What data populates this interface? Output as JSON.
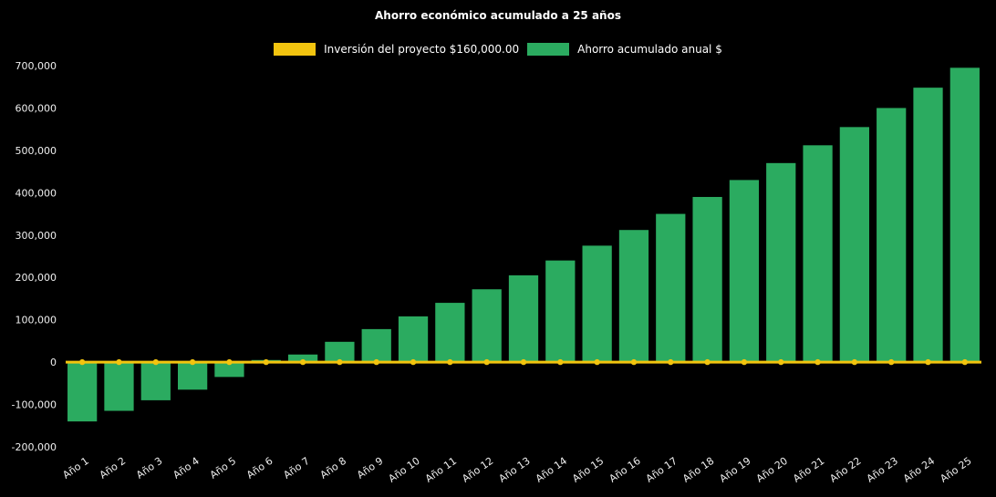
{
  "chart_data": {
    "type": "bar",
    "title": "Ahorro económico acumulado a 25 años",
    "categories": [
      "Año 1",
      "Año 2",
      "Año 3",
      "Año 4",
      "Año 5",
      "Año 6",
      "Año 7",
      "Año 8",
      "Año 9",
      "Año 10",
      "Año 11",
      "Año 12",
      "Año 13",
      "Año 14",
      "Año 15",
      "Año 16",
      "Año 17",
      "Año 18",
      "Año 19",
      "Año 20",
      "Año 21",
      "Año 22",
      "Año 23",
      "Año 24",
      "Año 25"
    ],
    "series": [
      {
        "name": "Inversión del proyecto $160,000.00",
        "type": "line",
        "color": "#f2c40f",
        "values": [
          0,
          0,
          0,
          0,
          0,
          0,
          0,
          0,
          0,
          0,
          0,
          0,
          0,
          0,
          0,
          0,
          0,
          0,
          0,
          0,
          0,
          0,
          0,
          0,
          0
        ]
      },
      {
        "name": "Ahorro acumulado anual $",
        "type": "bar",
        "color": "#2bab60",
        "values": [
          -140000,
          -115000,
          -90000,
          -65000,
          -35000,
          5000,
          18000,
          48000,
          78000,
          108000,
          140000,
          172000,
          205000,
          240000,
          275000,
          312000,
          350000,
          390000,
          430000,
          470000,
          512000,
          555000,
          600000,
          648000,
          695000
        ]
      }
    ],
    "ylim": [
      -200000,
      700000
    ],
    "ytick_step": 100000,
    "grid": false,
    "legend_position": "top",
    "background_color": "#000000",
    "text_color": "#ffffff"
  }
}
